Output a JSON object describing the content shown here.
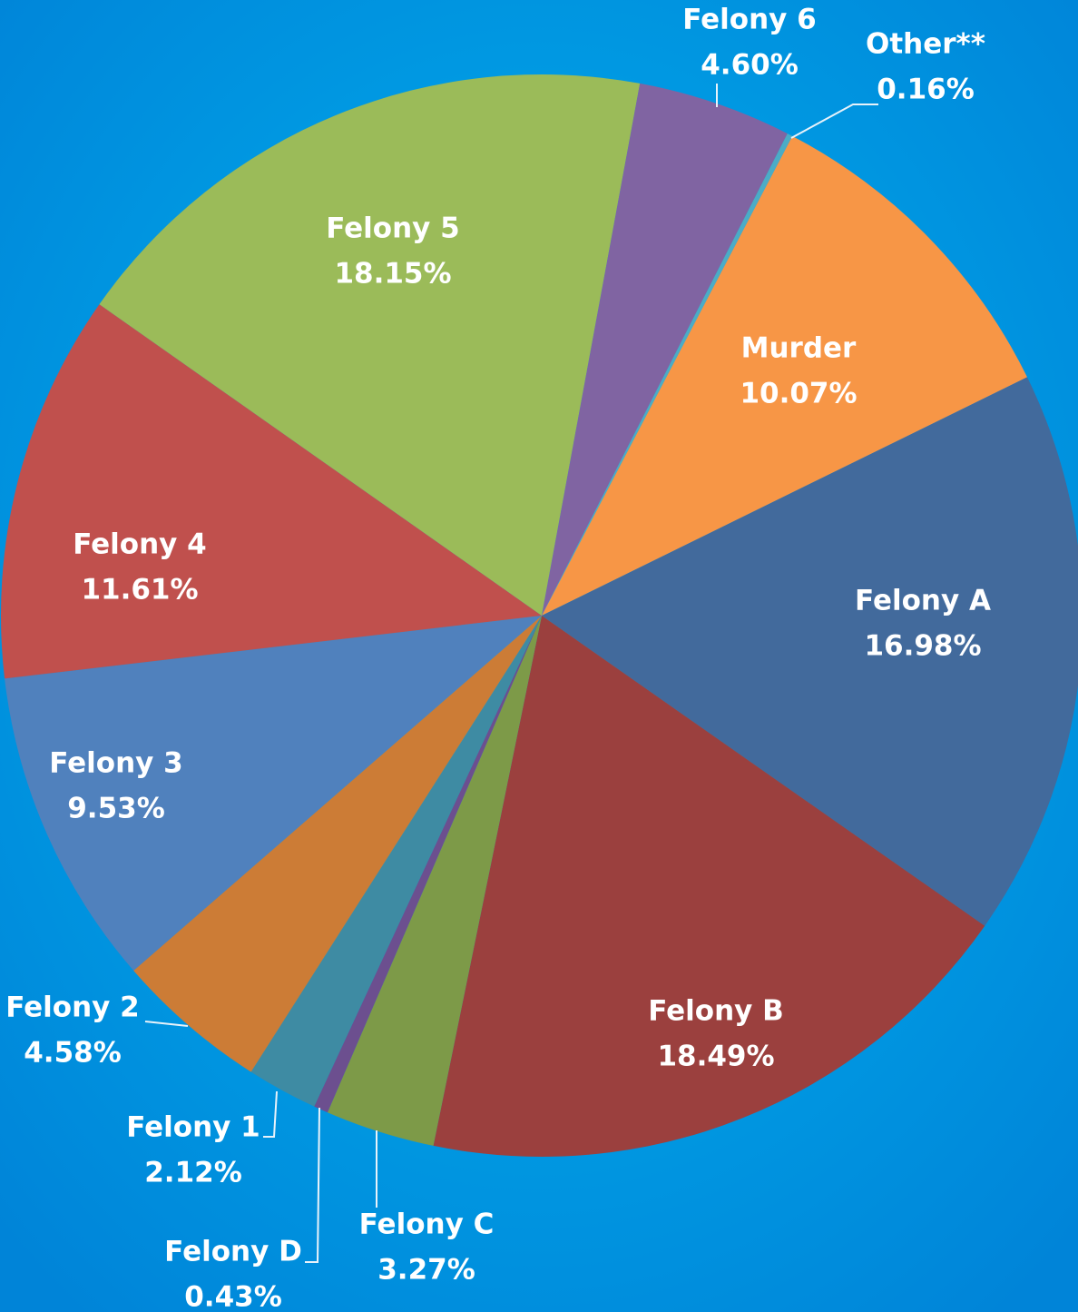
{
  "chart_data": {
    "type": "pie",
    "categories": [
      "Murder",
      "Felony A",
      "Felony B",
      "Felony C",
      "Felony D",
      "Felony 1",
      "Felony 2",
      "Felony 3",
      "Felony 4",
      "Felony 5",
      "Felony 6",
      "Other**"
    ],
    "values": [
      10.07,
      16.98,
      18.49,
      3.27,
      0.43,
      2.12,
      4.58,
      9.53,
      11.61,
      18.15,
      4.6,
      0.16
    ],
    "value_labels": [
      "10.07%",
      "16.98%",
      "18.49%",
      "3.27%",
      "0.43%",
      "2.12%",
      "4.58%",
      "9.53%",
      "11.61%",
      "18.15%",
      "4.60%",
      "0.16%"
    ],
    "colors": [
      "#f79646",
      "#426a9c",
      "#9b403e",
      "#7d9a48",
      "#6c4f8f",
      "#3e8ba3",
      "#cc7c36",
      "#5081bd",
      "#c0504d",
      "#9bbb59",
      "#8064a2",
      "#4bacc6"
    ]
  }
}
